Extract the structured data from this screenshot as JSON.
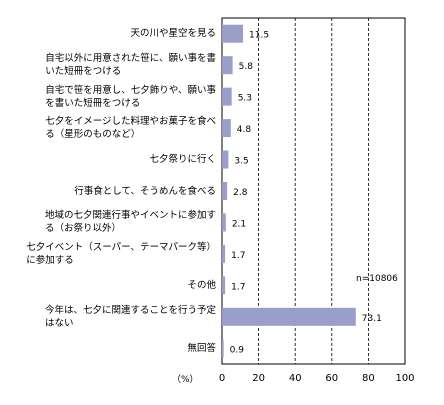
{
  "chart_data": {
    "type": "bar",
    "orientation": "horizontal",
    "categories": [
      "天の川や星空を見る",
      "自宅以外に用意された笹に、願い事を書\nいた短冊をつける",
      "自宅で笹を用意し、七夕飾りや、願い事\nを書いた短冊をつける",
      "七夕をイメージした料理やお菓子を食べ\nる（星形のものなど）",
      "七夕祭りに行く",
      "行事食として、そうめんを食べる",
      "地域の七夕関連行事やイベントに参加す\nる（お祭り以外）",
      "七夕イベント（スーパー、テーマパーク等）\nに参加する",
      "その他",
      "今年は、七夕に関連することを行う予定\nはない",
      "無回答"
    ],
    "values": [
      11.5,
      5.8,
      5.3,
      4.8,
      3.5,
      2.8,
      2.1,
      1.7,
      1.7,
      73.1,
      0.9
    ],
    "value_labels": [
      "11.5",
      "5.8",
      "5.3",
      "4.8",
      "3.5",
      "2.8",
      "2.1",
      "1.7",
      "1.7",
      "73.1",
      "0.9"
    ],
    "xlim": [
      0,
      100
    ],
    "xticks": [
      0,
      20,
      40,
      60,
      80,
      100
    ],
    "xtick_labels": [
      "0",
      "20",
      "40",
      "60",
      "80",
      "100"
    ],
    "unit_label": "（%）",
    "sample_note": "n=10806",
    "bar_color": "#9a9fca",
    "grid": "vertical-dashed"
  }
}
